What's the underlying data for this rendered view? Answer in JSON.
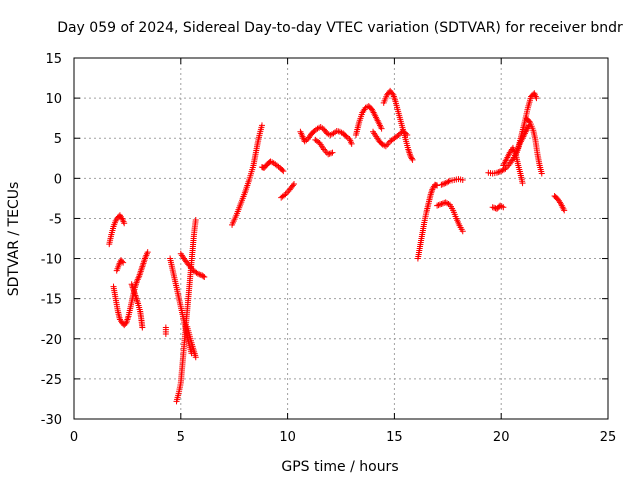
{
  "chart_data": {
    "type": "scatter",
    "title": "Day 059 of 2024, Sidereal Day-to-day VTEC variation (SDTVAR) for receiver bndr",
    "xlabel": "GPS time / hours",
    "ylabel": "SDTVAR / TECUs",
    "xlim": [
      0,
      25
    ],
    "ylim": [
      -30,
      15
    ],
    "xticks": [
      0,
      5,
      10,
      15,
      20,
      25
    ],
    "yticks": [
      -30,
      -25,
      -20,
      -15,
      -10,
      -5,
      0,
      5,
      10,
      15
    ],
    "grid": true,
    "marker": "plus",
    "color": "#ff0000",
    "segments": [
      [
        [
          1.65,
          -8.2
        ],
        [
          1.75,
          -7.0
        ],
        [
          1.85,
          -6.0
        ],
        [
          1.95,
          -5.3
        ],
        [
          2.05,
          -4.9
        ],
        [
          2.15,
          -4.6
        ],
        [
          2.25,
          -5.0
        ],
        [
          2.35,
          -5.6
        ]
      ],
      [
        [
          1.85,
          -13.5
        ],
        [
          1.95,
          -15.0
        ],
        [
          2.05,
          -16.5
        ],
        [
          2.15,
          -17.6
        ],
        [
          2.25,
          -18.0
        ],
        [
          2.35,
          -18.3
        ],
        [
          2.45,
          -18.0
        ],
        [
          2.55,
          -17.2
        ],
        [
          2.65,
          -16.0
        ],
        [
          2.75,
          -14.8
        ],
        [
          2.85,
          -13.6
        ],
        [
          2.95,
          -12.8
        ],
        [
          3.05,
          -12.2
        ],
        [
          3.15,
          -11.4
        ],
        [
          3.25,
          -10.6
        ],
        [
          3.35,
          -9.8
        ],
        [
          3.45,
          -9.2
        ]
      ],
      [
        [
          2.0,
          -11.5
        ],
        [
          2.1,
          -10.8
        ],
        [
          2.2,
          -10.2
        ],
        [
          2.3,
          -10.5
        ]
      ],
      [
        [
          2.7,
          -13.2
        ],
        [
          2.8,
          -14.0
        ],
        [
          2.9,
          -14.8
        ],
        [
          3.0,
          -15.6
        ],
        [
          3.1,
          -16.6
        ],
        [
          3.15,
          -17.5
        ],
        [
          3.2,
          -18.6
        ]
      ],
      [
        [
          4.3,
          -18.6
        ],
        [
          4.3,
          -19.4
        ]
      ],
      [
        [
          4.5,
          -10.0
        ],
        [
          4.6,
          -11.2
        ],
        [
          4.7,
          -12.4
        ],
        [
          4.8,
          -13.6
        ],
        [
          4.9,
          -14.8
        ],
        [
          5.0,
          -16.0
        ],
        [
          5.1,
          -17.2
        ],
        [
          5.2,
          -18.4
        ],
        [
          5.3,
          -19.6
        ],
        [
          5.4,
          -20.8
        ],
        [
          5.5,
          -21.8
        ]
      ],
      [
        [
          4.8,
          -27.8
        ],
        [
          4.9,
          -26.8
        ],
        [
          5.0,
          -25.5
        ],
        [
          5.05,
          -24.0
        ],
        [
          5.1,
          -22.5
        ],
        [
          5.15,
          -21.0
        ],
        [
          5.2,
          -19.5
        ],
        [
          5.25,
          -18.0
        ],
        [
          5.3,
          -16.5
        ],
        [
          5.35,
          -15.0
        ],
        [
          5.4,
          -13.5
        ],
        [
          5.45,
          -12.0
        ],
        [
          5.5,
          -10.5
        ],
        [
          5.55,
          -9.0
        ],
        [
          5.6,
          -7.5
        ],
        [
          5.65,
          -6.2
        ],
        [
          5.7,
          -5.2
        ]
      ],
      [
        [
          5.3,
          -18.5
        ],
        [
          5.4,
          -19.5
        ],
        [
          5.5,
          -20.5
        ],
        [
          5.6,
          -21.4
        ],
        [
          5.7,
          -22.3
        ]
      ],
      [
        [
          5.0,
          -9.4
        ],
        [
          5.2,
          -10.2
        ],
        [
          5.4,
          -10.9
        ],
        [
          5.6,
          -11.5
        ],
        [
          5.8,
          -11.9
        ],
        [
          6.0,
          -12.1
        ],
        [
          6.1,
          -12.3
        ]
      ],
      [
        [
          7.4,
          -5.8
        ],
        [
          7.6,
          -4.6
        ],
        [
          7.8,
          -3.2
        ],
        [
          8.0,
          -1.8
        ],
        [
          8.2,
          -0.2
        ],
        [
          8.4,
          1.6
        ],
        [
          8.5,
          3.0
        ],
        [
          8.6,
          4.4
        ],
        [
          8.7,
          5.6
        ],
        [
          8.8,
          6.6
        ]
      ],
      [
        [
          8.8,
          1.4
        ],
        [
          8.9,
          1.3
        ],
        [
          9.0,
          1.6
        ],
        [
          9.1,
          1.9
        ],
        [
          9.2,
          2.1
        ],
        [
          9.35,
          1.9
        ],
        [
          9.5,
          1.6
        ],
        [
          9.65,
          1.3
        ],
        [
          9.8,
          0.9
        ]
      ],
      [
        [
          9.7,
          -2.4
        ],
        [
          9.9,
          -2.0
        ],
        [
          10.1,
          -1.4
        ],
        [
          10.3,
          -0.7
        ]
      ],
      [
        [
          10.6,
          5.8
        ],
        [
          10.7,
          5.2
        ],
        [
          10.8,
          4.6
        ],
        [
          10.95,
          4.9
        ],
        [
          11.1,
          5.5
        ],
        [
          11.25,
          5.9
        ],
        [
          11.4,
          6.2
        ],
        [
          11.55,
          6.4
        ],
        [
          11.7,
          6.1
        ],
        [
          11.85,
          5.6
        ],
        [
          12.0,
          5.4
        ],
        [
          12.15,
          5.6
        ],
        [
          12.3,
          5.9
        ],
        [
          12.45,
          5.8
        ],
        [
          12.6,
          5.6
        ],
        [
          12.75,
          5.2
        ],
        [
          12.9,
          4.9
        ],
        [
          13.0,
          4.3
        ]
      ],
      [
        [
          11.3,
          4.8
        ],
        [
          11.5,
          4.4
        ],
        [
          11.7,
          3.6
        ],
        [
          11.9,
          3.0
        ],
        [
          12.1,
          3.2
        ]
      ],
      [
        [
          13.2,
          5.4
        ],
        [
          13.35,
          7.0
        ],
        [
          13.5,
          8.2
        ],
        [
          13.65,
          8.8
        ],
        [
          13.8,
          9.0
        ],
        [
          13.95,
          8.6
        ],
        [
          14.1,
          7.8
        ],
        [
          14.25,
          7.0
        ],
        [
          14.4,
          6.2
        ]
      ],
      [
        [
          14.0,
          5.8
        ],
        [
          14.15,
          5.2
        ],
        [
          14.3,
          4.6
        ],
        [
          14.45,
          4.2
        ],
        [
          14.6,
          4.0
        ],
        [
          14.8,
          4.6
        ],
        [
          15.0,
          5.0
        ],
        [
          15.2,
          5.4
        ],
        [
          15.4,
          5.9
        ],
        [
          15.6,
          5.4
        ]
      ],
      [
        [
          14.5,
          9.4
        ],
        [
          14.65,
          10.4
        ],
        [
          14.8,
          10.9
        ],
        [
          14.95,
          10.4
        ],
        [
          15.05,
          9.6
        ],
        [
          15.15,
          8.6
        ],
        [
          15.25,
          7.6
        ],
        [
          15.35,
          6.6
        ],
        [
          15.45,
          5.6
        ],
        [
          15.55,
          4.6
        ],
        [
          15.65,
          3.6
        ],
        [
          15.75,
          2.8
        ],
        [
          15.85,
          2.3
        ]
      ],
      [
        [
          16.1,
          -10.0
        ],
        [
          16.2,
          -8.5
        ],
        [
          16.3,
          -7.0
        ],
        [
          16.4,
          -5.5
        ],
        [
          16.5,
          -4.2
        ],
        [
          16.6,
          -3.1
        ],
        [
          16.7,
          -2.0
        ],
        [
          16.8,
          -1.2
        ],
        [
          16.9,
          -0.8
        ],
        [
          17.0,
          -0.9
        ]
      ],
      [
        [
          17.0,
          -3.4
        ],
        [
          17.2,
          -3.2
        ],
        [
          17.4,
          -3.0
        ],
        [
          17.6,
          -3.3
        ],
        [
          17.75,
          -4.0
        ],
        [
          17.9,
          -5.0
        ],
        [
          18.05,
          -5.9
        ],
        [
          18.2,
          -6.6
        ]
      ],
      [
        [
          17.2,
          -0.8
        ],
        [
          17.4,
          -0.6
        ],
        [
          17.6,
          -0.3
        ],
        [
          17.8,
          -0.2
        ],
        [
          18.0,
          -0.1
        ],
        [
          18.2,
          -0.2
        ]
      ],
      [
        [
          19.4,
          0.7
        ],
        [
          19.6,
          0.6
        ],
        [
          19.8,
          0.7
        ],
        [
          20.0,
          0.9
        ],
        [
          20.2,
          1.2
        ],
        [
          20.4,
          1.8
        ],
        [
          20.6,
          2.6
        ],
        [
          20.8,
          3.8
        ],
        [
          20.95,
          5.4
        ],
        [
          21.1,
          7.0
        ],
        [
          21.25,
          8.8
        ],
        [
          21.4,
          10.2
        ],
        [
          21.55,
          10.6
        ],
        [
          21.65,
          10.0
        ]
      ],
      [
        [
          19.6,
          -3.6
        ],
        [
          19.8,
          -3.8
        ],
        [
          19.95,
          -3.4
        ],
        [
          20.1,
          -3.6
        ]
      ],
      [
        [
          20.1,
          1.6
        ],
        [
          20.25,
          2.4
        ],
        [
          20.4,
          3.2
        ],
        [
          20.55,
          3.8
        ],
        [
          20.7,
          2.8
        ],
        [
          20.8,
          1.6
        ],
        [
          20.9,
          0.6
        ],
        [
          21.0,
          -0.6
        ]
      ],
      [
        [
          21.2,
          7.4
        ],
        [
          21.35,
          7.0
        ],
        [
          21.5,
          6.0
        ],
        [
          21.6,
          4.8
        ],
        [
          21.7,
          3.0
        ],
        [
          21.8,
          1.6
        ],
        [
          21.9,
          0.6
        ]
      ],
      [
        [
          20.7,
          3.0
        ],
        [
          20.85,
          4.2
        ],
        [
          21.0,
          5.0
        ],
        [
          21.15,
          5.8
        ],
        [
          21.3,
          6.6
        ]
      ],
      [
        [
          22.5,
          -2.2
        ],
        [
          22.65,
          -2.6
        ],
        [
          22.8,
          -3.2
        ],
        [
          22.95,
          -4.0
        ]
      ]
    ]
  }
}
